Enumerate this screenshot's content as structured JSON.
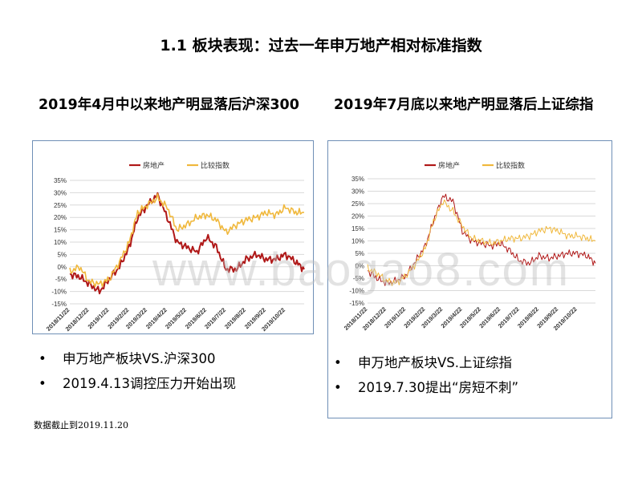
{
  "page": {
    "title": "1.1 板块表现：过去一年申万地产相对标准指数",
    "footnote": "数据截止到2019.11.20",
    "watermark": "www.baogao8.com",
    "colors": {
      "real_estate": "#b01818",
      "index": "#f0b83c",
      "panel_border": "#6f8fb6"
    }
  },
  "left": {
    "heading": "2019年4月中以来地产明显落后沪深300",
    "bullets": [
      "申万地产板块VS.沪深300",
      "2019.4.13调控压力开始出现"
    ]
  },
  "right": {
    "heading": "2019年7月底以来地产明显落后上证综指",
    "bullets": [
      "申万地产板块VS.上证综指",
      "2019.7.30提出“房短不刺”"
    ]
  },
  "bullet_symbol": "•",
  "chart_data": [
    {
      "type": "line",
      "ylim": [
        -15,
        35
      ],
      "yticks": [
        "-15%",
        "-10%",
        "-5%",
        "0%",
        "5%",
        "10%",
        "15%",
        "20%",
        "25%",
        "30%",
        "35%"
      ],
      "xtick_labels": [
        "2018/11/22",
        "2018/12/22",
        "2019/1/22",
        "2019/2/22",
        "2019/3/22",
        "2019/4/22",
        "2019/5/22",
        "2019/6/22",
        "2019/7/22",
        "2019/8/22",
        "2019/9/22",
        "2019/10/22"
      ],
      "x": [
        "2018/11/22",
        "2018/12/7",
        "2018/12/22",
        "2019/1/7",
        "2019/1/22",
        "2019/2/7",
        "2019/2/22",
        "2019/3/7",
        "2019/3/22",
        "2019/4/7",
        "2019/4/22",
        "2019/5/7",
        "2019/5/22",
        "2019/6/7",
        "2019/6/22",
        "2019/7/7",
        "2019/7/22",
        "2019/8/7",
        "2019/8/22",
        "2019/9/7",
        "2019/9/22",
        "2019/10/7",
        "2019/10/22",
        "2019/11/7",
        "2019/11/20"
      ],
      "series": [
        {
          "name": "房地产",
          "color": "#b01818",
          "values": [
            -3,
            -4,
            -7,
            -10,
            -5,
            0,
            8,
            20,
            25,
            29,
            20,
            10,
            8,
            6,
            12,
            8,
            -1,
            -1,
            3,
            5,
            3,
            3,
            5,
            2,
            -1
          ]
        },
        {
          "name": "比较指数",
          "color": "#f0b83c",
          "values": [
            -2,
            0,
            -6,
            -7,
            -5,
            2,
            10,
            22,
            25,
            28,
            24,
            15,
            17,
            20,
            21,
            19,
            14,
            17,
            19,
            20,
            22,
            21,
            24,
            22,
            22
          ]
        }
      ],
      "legend": "top-center"
    },
    {
      "type": "line",
      "ylim": [
        -15,
        35
      ],
      "yticks": [
        "-15%",
        "-10%",
        "-5%",
        "0%",
        "5%",
        "10%",
        "15%",
        "20%",
        "25%",
        "30%",
        "35%"
      ],
      "xtick_labels": [
        "2018/11/22",
        "2018/12/22",
        "2019/1/22",
        "2019/2/22",
        "2019/3/22",
        "2019/4/22",
        "2019/5/22",
        "2019/6/22",
        "2019/7/22",
        "2019/8/22",
        "2019/9/22",
        "2019/10/22"
      ],
      "x": [
        "2018/11/22",
        "2018/12/7",
        "2018/12/22",
        "2019/1/7",
        "2019/1/22",
        "2019/2/7",
        "2019/2/22",
        "2019/3/7",
        "2019/3/22",
        "2019/4/7",
        "2019/4/22",
        "2019/5/7",
        "2019/5/22",
        "2019/6/7",
        "2019/6/22",
        "2019/7/7",
        "2019/7/22",
        "2019/8/7",
        "2019/8/22",
        "2019/9/7",
        "2019/9/22",
        "2019/10/7",
        "2019/10/22",
        "2019/11/7",
        "2019/11/20"
      ],
      "series": [
        {
          "name": "房地产",
          "color": "#b01818",
          "values": [
            -2,
            -5,
            -7,
            -6,
            -4,
            2,
            8,
            18,
            28,
            26,
            14,
            10,
            9,
            8,
            9,
            6,
            2,
            1,
            4,
            3,
            4,
            5,
            5,
            4,
            1
          ]
        },
        {
          "name": "比较指数",
          "color": "#f0b83c",
          "values": [
            -1,
            -3,
            -6,
            -7,
            -4,
            1,
            7,
            18,
            26,
            22,
            16,
            11,
            10,
            9,
            10,
            11,
            11,
            12,
            14,
            15,
            14,
            12,
            12,
            11,
            10
          ]
        }
      ],
      "legend": "top-center"
    }
  ]
}
